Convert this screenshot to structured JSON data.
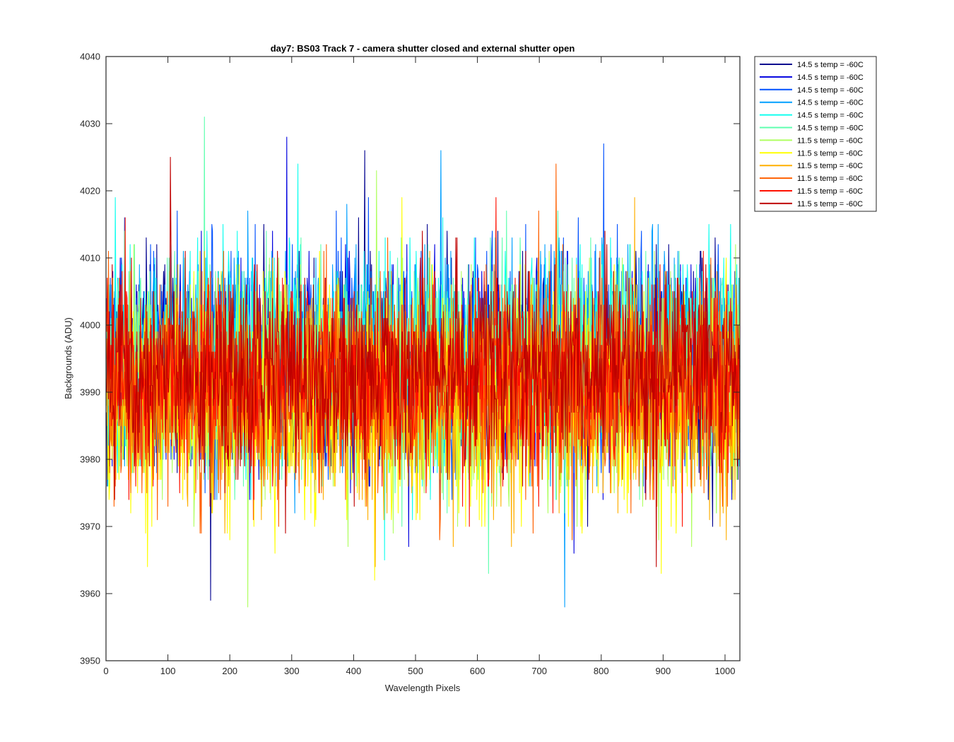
{
  "chart_data": {
    "type": "line",
    "title": "day7: BS03  Track 7 - camera shutter closed and external shutter open",
    "xlabel": "Wavelength Pixels",
    "ylabel": "Backgrounds (ADU)",
    "xlim": [
      0,
      1024
    ],
    "ylim": [
      3950,
      4040
    ],
    "xticks": [
      0,
      100,
      200,
      300,
      400,
      500,
      600,
      700,
      800,
      900,
      1000
    ],
    "yticks": [
      3950,
      3960,
      3970,
      3980,
      3990,
      4000,
      4010,
      4020,
      4030,
      4040
    ],
    "grid": false,
    "legend_position": "outside-top-right",
    "points_per_series": 1024,
    "series": [
      {
        "name": "14.5 s temp = -60C",
        "color": "#00008f",
        "mean": 3994,
        "spread": 8,
        "min": 3959,
        "max": 4026
      },
      {
        "name": "14.5 s temp = -60C",
        "color": "#0000df",
        "mean": 3994,
        "spread": 8,
        "min": 3966,
        "max": 4028
      },
      {
        "name": "14.5 s temp = -60C",
        "color": "#0050ff",
        "mean": 3995,
        "spread": 8,
        "min": 3972,
        "max": 4027
      },
      {
        "name": "14.5 s temp = -60C",
        "color": "#009fff",
        "mean": 3995,
        "spread": 8,
        "min": 3958,
        "max": 4026
      },
      {
        "name": "14.5 s temp = -60C",
        "color": "#10ffef",
        "mean": 3995,
        "spread": 8,
        "min": 3965,
        "max": 4024
      },
      {
        "name": "14.5 s temp = -60C",
        "color": "#5fffaf",
        "mean": 3994,
        "spread": 8,
        "min": 3963,
        "max": 4031
      },
      {
        "name": "11.5 s temp = -60C",
        "color": "#afff60",
        "mean": 3990,
        "spread": 8,
        "min": 3958,
        "max": 4023
      },
      {
        "name": "11.5 s temp = -60C",
        "color": "#ffff00",
        "mean": 3989,
        "spread": 8,
        "min": 3962,
        "max": 4019
      },
      {
        "name": "11.5 s temp = -60C",
        "color": "#ffaf00",
        "mean": 3990,
        "spread": 8,
        "min": 3964,
        "max": 4019
      },
      {
        "name": "11.5 s temp = -60C",
        "color": "#ff6000",
        "mean": 3991,
        "spread": 8,
        "min": 3968,
        "max": 4024
      },
      {
        "name": "11.5 s temp = -60C",
        "color": "#ff1000",
        "mean": 3992,
        "spread": 7,
        "min": 3970,
        "max": 4019
      },
      {
        "name": "11.5 s temp = -60C",
        "color": "#bf0000",
        "mean": 3993,
        "spread": 7,
        "min": 3964,
        "max": 4025
      }
    ]
  }
}
